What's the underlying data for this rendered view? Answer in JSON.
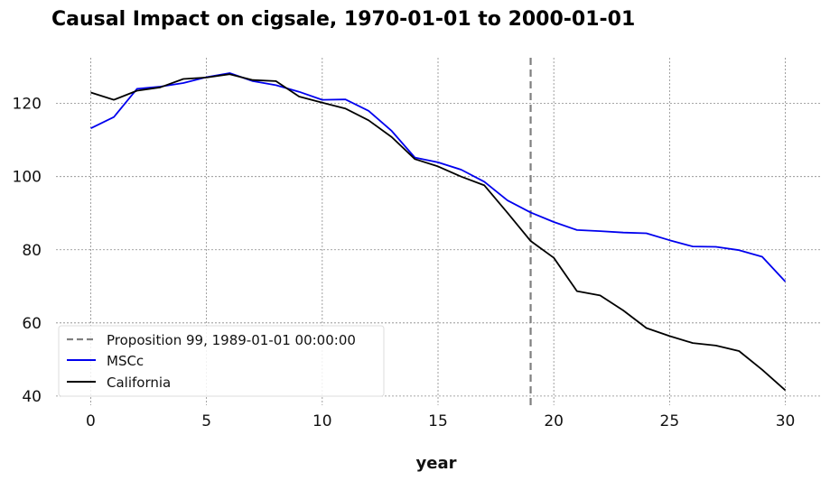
{
  "chart_data": {
    "type": "line",
    "title": "Causal Impact on cigsale, 1970-01-01 to 2000-01-01",
    "xlabel": "year",
    "ylabel": "",
    "xlim": [
      -1.5,
      31.5
    ],
    "ylim": [
      37.5,
      132.5
    ],
    "xticks": [
      0,
      5,
      10,
      15,
      20,
      25,
      30
    ],
    "yticks": [
      40,
      60,
      80,
      100,
      120
    ],
    "grid": true,
    "legend_position": "lower-left",
    "x": [
      0,
      1,
      2,
      3,
      4,
      5,
      6,
      7,
      8,
      9,
      10,
      11,
      12,
      13,
      14,
      15,
      16,
      17,
      18,
      19,
      20,
      21,
      22,
      23,
      24,
      25,
      26,
      27,
      28,
      29,
      30
    ],
    "series": [
      {
        "name": "MSCc",
        "color": "#0000ee",
        "values": [
          113.2,
          116.3,
          124.0,
          124.6,
          125.6,
          127.2,
          128.3,
          126.1,
          125.0,
          123.2,
          121.0,
          121.1,
          118.0,
          112.5,
          105.2,
          103.9,
          101.9,
          98.6,
          93.5,
          90.2,
          87.6,
          85.4,
          85.1,
          84.7,
          84.5,
          82.6,
          80.9,
          80.8,
          79.9,
          78.1,
          71.3
        ]
      },
      {
        "name": "California",
        "color": "#000000",
        "values": [
          123.0,
          121.0,
          123.5,
          124.4,
          126.7,
          127.1,
          128.0,
          126.4,
          126.1,
          121.9,
          120.2,
          118.6,
          115.4,
          110.8,
          104.8,
          102.8,
          100.0,
          97.6,
          90.1,
          82.4,
          77.8,
          68.7,
          67.5,
          63.4,
          58.6,
          56.4,
          54.5,
          53.8,
          52.3,
          47.2,
          41.6
        ]
      }
    ],
    "intervention": {
      "label": "Proposition 99, 1989-01-01 00:00:00",
      "x": 19,
      "color": "#808080",
      "style": "dashed"
    }
  }
}
